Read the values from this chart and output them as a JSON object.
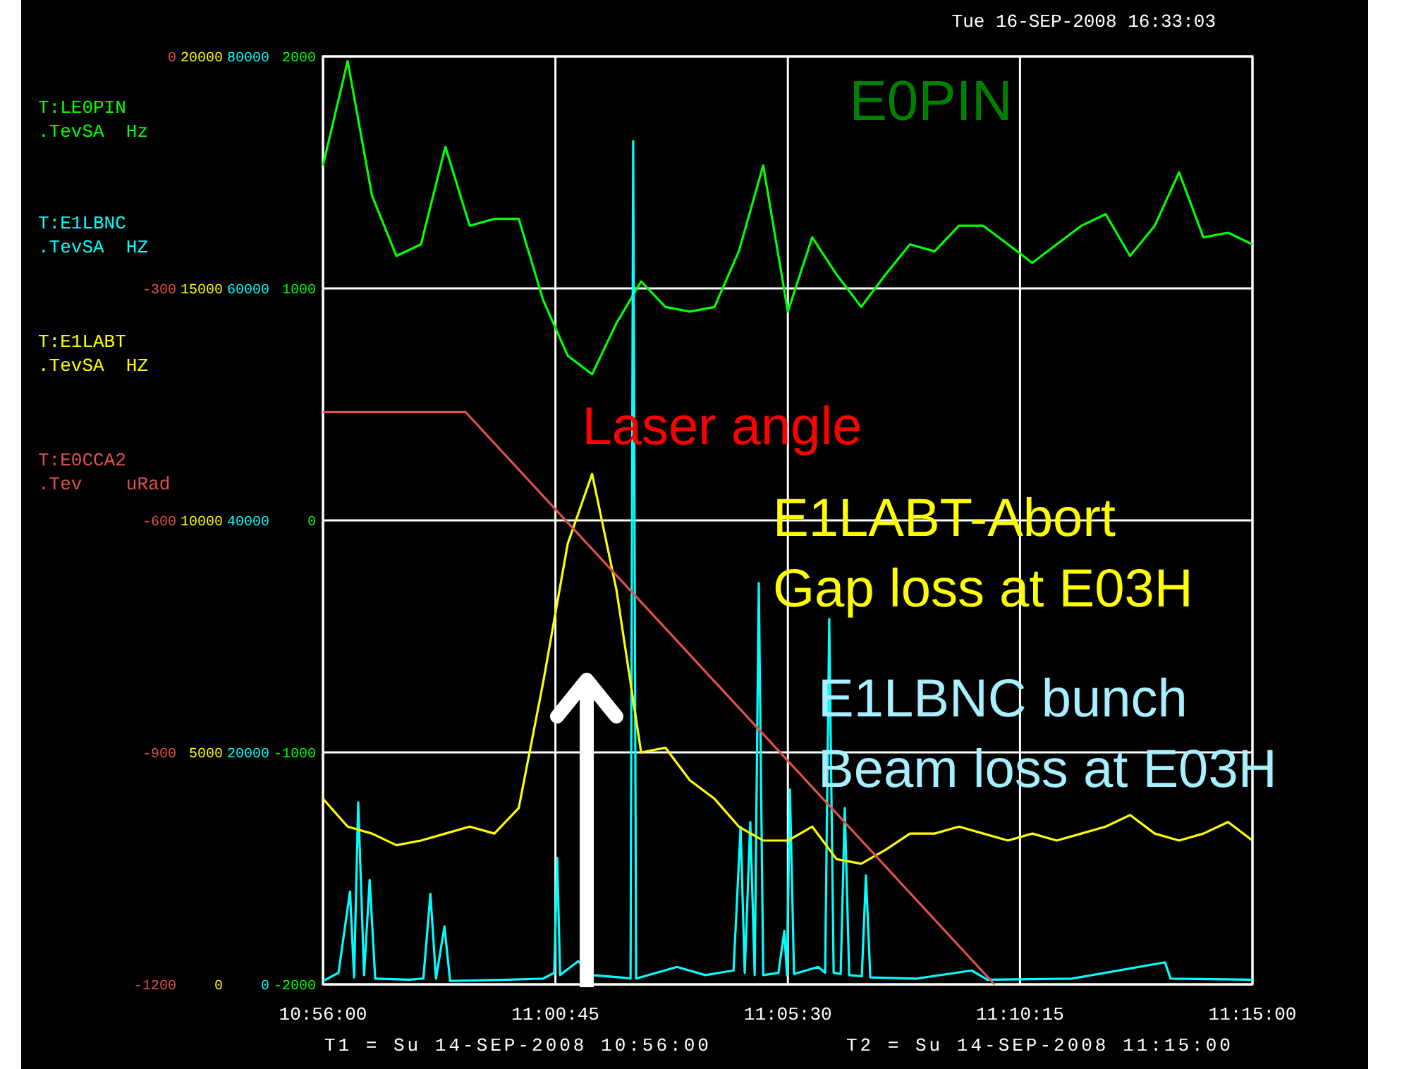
{
  "chart_data": [
    {
      "type": "line",
      "title": "Tue 16-SEP-2008 16:33:03",
      "xlim": [
        10.9333,
        11.25
      ],
      "xticks": [
        {
          "value": 10.9333,
          "label": "10:56:00"
        },
        {
          "value": 11.0125,
          "label": "11:00:45"
        },
        {
          "value": 11.0917,
          "label": "11:05:30"
        },
        {
          "value": 11.1708,
          "label": "11:10:15"
        },
        {
          "value": 11.25,
          "label": "11:15:00"
        }
      ],
      "ylim": [
        -2000,
        2000
      ],
      "yticks": [
        2000,
        1000,
        0,
        -1000,
        -2000
      ],
      "grid": true,
      "legend": "left",
      "line_style": "solid",
      "marker": "none",
      "x": [
        10.9333,
        10.9417,
        10.95,
        10.9583,
        10.9667,
        10.975,
        10.9833,
        10.9917,
        11.0,
        11.0083,
        11.0167,
        11.025,
        11.0333,
        11.0417,
        11.05,
        11.0583,
        11.0667,
        11.075,
        11.0833,
        11.0917,
        11.1,
        11.1083,
        11.1167,
        11.125,
        11.1333,
        11.1417,
        11.15,
        11.1583,
        11.1667,
        11.175,
        11.1833,
        11.1917,
        11.2,
        11.2083,
        11.2167,
        11.225,
        11.2333,
        11.2417,
        11.25
      ],
      "series": [
        {
          "name": "T:LE0PIN\n.TevSA  Hz",
          "color": "#00ff00",
          "values": [
            1530,
            1980,
            1400,
            1140,
            1190,
            1610,
            1270,
            1300,
            1300,
            950,
            710,
            630,
            850,
            1030,
            920,
            900,
            920,
            1160,
            1530,
            900,
            1220,
            1060,
            920,
            1060,
            1190,
            1160,
            1270,
            1270,
            1190,
            1110,
            1190,
            1270,
            1320,
            1140,
            1270,
            1500,
            1220,
            1240,
            1190
          ]
        }
      ],
      "annotations": [
        "E0PIN",
        "Laser angle",
        "E1LABT-Abort\nGap loss at E03H",
        "E1LBNC bunch\nBeam loss at E03H",
        "T1 = Su 14-SEP-2008 10:56:00",
        "T2 = Su 14-SEP-2008 11:15:00"
      ]
    },
    {
      "type": "line",
      "xlim": [
        10.9333,
        11.25
      ],
      "ylim": [
        0,
        80000
      ],
      "yticks": [
        80000,
        60000,
        40000,
        20000,
        0
      ],
      "tick_labels": "y",
      "legend": "left",
      "line_style": "solid",
      "series": [
        {
          "name": "T:E1LBNC\n.TevSA  HZ",
          "color": "#00ffff",
          "x": [
            10.9333,
            10.9386,
            10.9425,
            10.9439,
            10.9453,
            10.9473,
            10.9492,
            10.9511,
            10.9626,
            10.9675,
            10.9699,
            10.9718,
            10.9747,
            10.9766,
            10.9963,
            11.0083,
            11.0121,
            11.0131,
            11.0141,
            11.0203,
            11.0251,
            11.0347,
            11.0381,
            11.039,
            11.04,
            11.0539,
            11.0636,
            11.0732,
            11.0756,
            11.077,
            11.0789,
            11.0804,
            11.0818,
            11.0833,
            11.0885,
            11.0905,
            11.0914,
            11.0924,
            11.0938,
            11.102,
            11.1044,
            11.1058,
            11.1073,
            11.1097,
            11.1111,
            11.1126,
            11.1169,
            11.1183,
            11.1198,
            11.1356,
            11.1544,
            11.1597,
            11.1885,
            11.2202,
            11.2221,
            11.25
          ],
          "values": [
            300,
            1000,
            8000,
            600,
            15700,
            800,
            9000,
            500,
            400,
            500,
            7800,
            500,
            5000,
            300,
            400,
            500,
            1000,
            10900,
            800,
            2000,
            800,
            600,
            500,
            72700,
            500,
            1500,
            800,
            1200,
            13600,
            1000,
            14000,
            800,
            34600,
            800,
            1000,
            4600,
            800,
            16800,
            900,
            1500,
            1000,
            31500,
            1000,
            900,
            15200,
            800,
            700,
            9400,
            600,
            500,
            1200,
            400,
            500,
            1900,
            500,
            400
          ]
        }
      ]
    },
    {
      "type": "line",
      "xlim": [
        10.9333,
        11.25
      ],
      "ylim": [
        0,
        20000
      ],
      "yticks": [
        20000,
        15000,
        10000,
        5000,
        0
      ],
      "tick_labels": "y",
      "legend": "left",
      "line_style": "solid",
      "x": [
        10.9333,
        10.9417,
        10.95,
        10.9583,
        10.9667,
        10.975,
        10.9833,
        10.9917,
        11.0,
        11.0083,
        11.0167,
        11.025,
        11.0333,
        11.0417,
        11.05,
        11.0583,
        11.0667,
        11.075,
        11.0833,
        11.0917,
        11.1,
        11.1083,
        11.1167,
        11.125,
        11.1333,
        11.1417,
        11.15,
        11.1583,
        11.1667,
        11.175,
        11.1833,
        11.1917,
        11.2,
        11.2083,
        11.2167,
        11.225,
        11.2333,
        11.2417,
        11.25
      ],
      "series": [
        {
          "name": "T:E1LABT\n.TevSA  HZ",
          "color": "#ffff00",
          "values": [
            4000,
            3400,
            3250,
            3000,
            3100,
            3250,
            3400,
            3250,
            3800,
            6500,
            9500,
            11000,
            8500,
            5000,
            5100,
            4400,
            4000,
            3400,
            3100,
            3100,
            3400,
            2700,
            2600,
            2900,
            3250,
            3250,
            3400,
            3250,
            3100,
            3250,
            3100,
            3250,
            3400,
            3650,
            3250,
            3100,
            3250,
            3500,
            3100
          ]
        }
      ]
    },
    {
      "type": "line",
      "xlim": [
        10.9333,
        11.25
      ],
      "ylim": [
        -1200,
        0
      ],
      "yticks": [
        0,
        -300,
        -600,
        -900,
        -1200
      ],
      "tick_labels": "y",
      "legend": "left",
      "line_style": "solid",
      "series": [
        {
          "name": "T:E0CCA2\n.Tev    uRad",
          "color": "#e05050",
          "x": [
            10.9333,
            10.9819,
            11.1621
          ],
          "values": [
            -460,
            -460,
            -1200
          ]
        }
      ]
    }
  ]
}
